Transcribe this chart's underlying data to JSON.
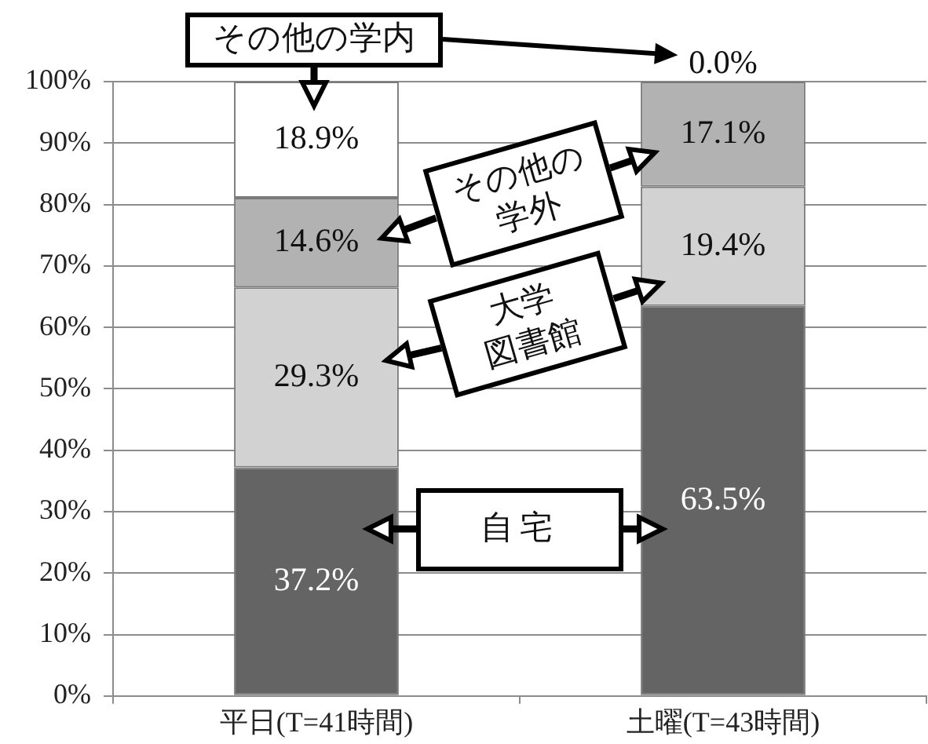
{
  "chart_data": {
    "type": "bar",
    "stacked": true,
    "categories": [
      "平日(T=41時間)",
      "土曜(T=43時間)"
    ],
    "series": [
      {
        "name": "自宅",
        "color": "#646464",
        "values": [
          37.2,
          63.5
        ],
        "value_labels": [
          "37.2%",
          "63.5%"
        ]
      },
      {
        "name": "大学図書館",
        "color": "#d2d2d2",
        "values": [
          29.3,
          19.4
        ],
        "value_labels": [
          "29.3%",
          "19.4%"
        ]
      },
      {
        "name": "その他の学外",
        "color": "#b2b2b2",
        "values": [
          14.6,
          17.1
        ],
        "value_labels": [
          "14.6%",
          "17.1%"
        ]
      },
      {
        "name": "その他の学内",
        "color": "#ffffff",
        "values": [
          18.9,
          0.0
        ],
        "value_labels": [
          "18.9%",
          "0.0%"
        ]
      }
    ],
    "ylim": [
      0,
      100
    ],
    "yticks": [
      {
        "value": 0,
        "label": "0%"
      },
      {
        "value": 10,
        "label": "10%"
      },
      {
        "value": 20,
        "label": "20%"
      },
      {
        "value": 30,
        "label": "30%"
      },
      {
        "value": 40,
        "label": "40%"
      },
      {
        "value": 50,
        "label": "50%"
      },
      {
        "value": 60,
        "label": "60%"
      },
      {
        "value": 70,
        "label": "70%"
      },
      {
        "value": 80,
        "label": "80%"
      },
      {
        "value": 90,
        "label": "90%"
      },
      {
        "value": 100,
        "label": "100%"
      }
    ],
    "grid": "y",
    "legend": false
  }
}
